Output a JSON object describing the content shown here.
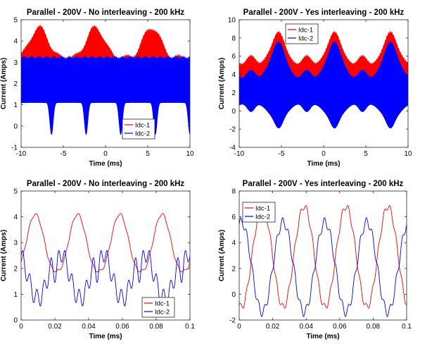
{
  "chart_data": [
    {
      "type": "area",
      "title": "Parallel - 200V - No interleaving - 200 kHz",
      "xlabel": "Time (ms)",
      "ylabel": "Current (Amps)",
      "xlim": [
        -10,
        10
      ],
      "ylim": [
        -1,
        5
      ],
      "xticks": [
        "-10",
        "-5",
        "0",
        "5",
        "10"
      ],
      "yticks": [
        "-1",
        "0",
        "1",
        "2",
        "3",
        "4",
        "5"
      ],
      "legend_position": "bottom-right",
      "series": [
        {
          "name": "Idc-1",
          "color": "#ff0000",
          "envelope_upper_peak": 4.6,
          "envelope_upper_trough": 3.2,
          "envelope_lower": 3.0
        },
        {
          "name": "Idc-2",
          "color": "#0000ff",
          "envelope_upper": 3.2,
          "envelope_lower_base": 1.1,
          "envelope_lower_dips": -0.4
        }
      ]
    },
    {
      "type": "area",
      "title": "Parallel - 200V - Yes interleaving - 200 kHz",
      "xlabel": "Time (ms)",
      "ylabel": "Current (Amps)",
      "xlim": [
        -10,
        10
      ],
      "ylim": [
        -4,
        10
      ],
      "xticks": [
        "-10",
        "-5",
        "0",
        "5",
        "10"
      ],
      "yticks": [
        "-4",
        "-2",
        "0",
        "2",
        "4",
        "6",
        "8",
        "10"
      ],
      "legend_position": "top-left",
      "series": [
        {
          "name": "Idc-1",
          "color": "#ff0000",
          "envelope_upper_peak": 8.5,
          "envelope_upper_trough": 5.2
        },
        {
          "name": "Idc-2",
          "color": "#0000ff",
          "envelope_upper_peak": 7.5,
          "envelope_lower_dips": -3.2
        }
      ]
    },
    {
      "type": "line",
      "title": "Parallel - 200V - No interleaving - 200 kHz",
      "xlabel": "Time (ms)",
      "ylabel": "Current (Amps)",
      "xlim": [
        0,
        0.1
      ],
      "ylim": [
        0,
        5
      ],
      "xticks": [
        "0",
        "0.02",
        "0.04",
        "0.06",
        "0.08",
        "0.1"
      ],
      "yticks": [
        "0",
        "1",
        "2",
        "3",
        "4",
        "5"
      ],
      "legend_position": "bottom-right",
      "series": [
        {
          "name": "Idc-1",
          "color": "#ff0000",
          "period": 0.025,
          "max": 4.1,
          "min": 1.9
        },
        {
          "name": "Idc-2",
          "color": "#0000ff",
          "period": 0.025,
          "max": 3.1,
          "min": 0.6
        }
      ]
    },
    {
      "type": "line",
      "title": "Parallel - 200V - Yes interleaving - 200 kHz",
      "xlabel": "Time (ms)",
      "ylabel": "Current (Amps)",
      "xlim": [
        0,
        0.1
      ],
      "ylim": [
        -2,
        8
      ],
      "xticks": [
        "0",
        "0.02",
        "0.04",
        "0.06",
        "0.08",
        "0.1"
      ],
      "yticks": [
        "-2",
        "0",
        "2",
        "4",
        "6",
        "8"
      ],
      "legend_position": "top-left",
      "series": [
        {
          "name": "Idc-1",
          "color": "#ff0000",
          "period": 0.025,
          "max": 6.8,
          "min": -1.0
        },
        {
          "name": "Idc-2",
          "color": "#0000ff",
          "period": 0.025,
          "max": 5.6,
          "min": -1.4
        }
      ]
    }
  ]
}
